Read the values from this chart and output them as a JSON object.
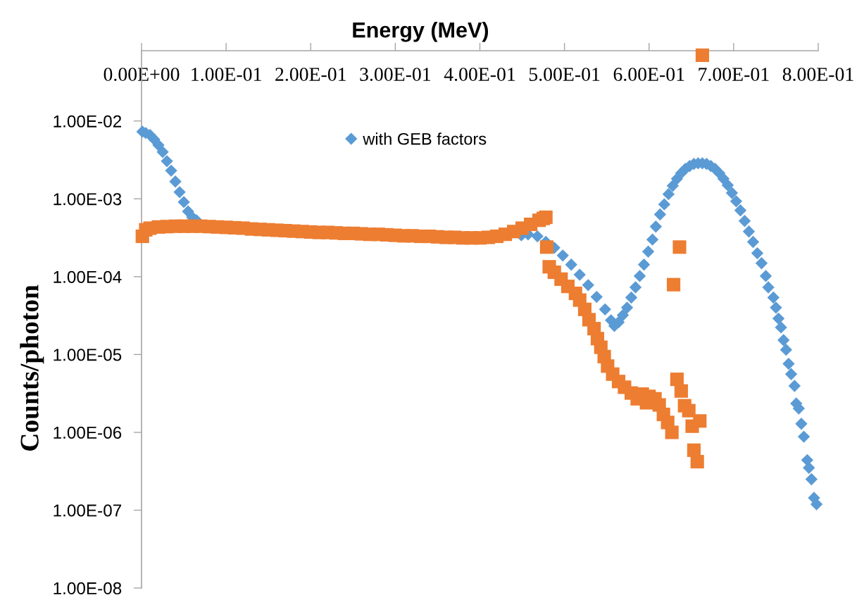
{
  "chart_data": {
    "type": "scatter",
    "xlabel": "Energy (MeV)",
    "ylabel": "Counts/photon",
    "log": "y",
    "xlim": [
      0,
      0.8
    ],
    "ylim": [
      1e-08,
      0.08
    ],
    "xticks": [
      {
        "value": 0,
        "label": "0.00E+00"
      },
      {
        "value": 0.1,
        "label": "1.00E-01"
      },
      {
        "value": 0.2,
        "label": "2.00E-01"
      },
      {
        "value": 0.3,
        "label": "3.00E-01"
      },
      {
        "value": 0.4,
        "label": "4.00E-01"
      },
      {
        "value": 0.5,
        "label": "5.00E-01"
      },
      {
        "value": 0.6,
        "label": "6.00E-01"
      },
      {
        "value": 0.7,
        "label": "7.00E-01"
      },
      {
        "value": 0.8,
        "label": "8.00E-01"
      }
    ],
    "yticks": [
      {
        "value": 1e-08,
        "label": "1.00E-08"
      },
      {
        "value": 1e-07,
        "label": "1.00E-07"
      },
      {
        "value": 1e-06,
        "label": "1.00E-06"
      },
      {
        "value": 1e-05,
        "label": "1.00E-05"
      },
      {
        "value": 0.0001,
        "label": "1.00E-04"
      },
      {
        "value": 0.001,
        "label": "1.00E-03"
      },
      {
        "value": 0.01,
        "label": "1.00E-02"
      }
    ],
    "legend": "top",
    "series": [
      {
        "name": "with GEB factors",
        "color": "#5b9bd5",
        "marker": "diamond",
        "x": [
          0.001,
          0.005,
          0.01,
          0.015,
          0.02,
          0.025,
          0.03,
          0.035,
          0.04,
          0.045,
          0.05,
          0.055,
          0.06,
          0.065,
          0.449,
          0.457,
          0.468,
          0.478,
          0.488,
          0.498,
          0.508,
          0.518,
          0.528,
          0.538,
          0.548,
          0.555,
          0.559,
          0.564,
          0.569,
          0.574,
          0.579,
          0.584,
          0.589,
          0.594,
          0.599,
          0.604,
          0.608,
          0.613,
          0.618,
          0.623,
          0.628,
          0.633,
          0.638,
          0.643,
          0.648,
          0.653,
          0.658,
          0.663,
          0.668,
          0.673,
          0.678,
          0.683,
          0.688,
          0.693,
          0.698,
          0.703,
          0.708,
          0.713,
          0.718,
          0.723,
          0.728,
          0.733,
          0.738,
          0.741,
          0.747,
          0.75,
          0.753,
          0.756,
          0.759,
          0.762,
          0.765,
          0.768,
          0.772,
          0.774,
          0.777,
          0.78,
          0.783,
          0.787,
          0.789,
          0.792,
          0.795,
          0.798
        ],
        "values": [
          0.0073,
          0.007,
          0.0066,
          0.0058,
          0.0049,
          0.004,
          0.00305,
          0.0023,
          0.00167,
          0.00122,
          0.00091,
          0.00069,
          0.00058,
          0.00053,
          0.00034,
          0.00035,
          0.00033,
          0.00028,
          0.000235,
          0.000187,
          0.000143,
          0.000106,
          7.8e-05,
          5.5e-05,
          3.8e-05,
          2.75e-05,
          2.33e-05,
          2.6e-05,
          3.2e-05,
          4e-05,
          5.4e-05,
          7.3e-05,
          0.000102,
          0.000143,
          0.00021,
          0.0003,
          0.00044,
          0.00063,
          0.00085,
          0.00115,
          0.00147,
          0.00181,
          0.00214,
          0.00243,
          0.00264,
          0.00281,
          0.00286,
          0.00286,
          0.00281,
          0.00264,
          0.00243,
          0.00214,
          0.00181,
          0.0015,
          0.00119,
          0.00093,
          0.00071,
          0.00052,
          0.00038,
          0.00028,
          0.0002,
          0.000149,
          0.000102,
          7.3e-05,
          5.4e-05,
          4e-05,
          2.9e-05,
          2.23e-05,
          1.53e-05,
          1.15e-05,
          7.6e-06,
          5.6e-06,
          3.95e-06,
          2.35e-06,
          2.03e-06,
          1.29e-06,
          8.8e-07,
          4.4e-07,
          3.5e-07,
          2.5e-07,
          1.44e-07,
          1.19e-07
        ]
      },
      {
        "color": "#ed7d31",
        "marker": "square",
        "x": [
          0.001,
          0.005,
          0.01,
          0.02,
          0.03,
          0.04,
          0.05,
          0.06,
          0.07,
          0.08,
          0.09,
          0.1,
          0.11,
          0.12,
          0.13,
          0.14,
          0.15,
          0.16,
          0.17,
          0.18,
          0.19,
          0.2,
          0.21,
          0.22,
          0.23,
          0.24,
          0.25,
          0.26,
          0.27,
          0.28,
          0.29,
          0.3,
          0.31,
          0.32,
          0.33,
          0.34,
          0.35,
          0.36,
          0.37,
          0.38,
          0.39,
          0.4,
          0.41,
          0.42,
          0.43,
          0.44,
          0.45,
          0.46,
          0.47,
          0.475,
          0.478,
          0.479,
          0.482,
          0.488,
          0.496,
          0.504,
          0.513,
          0.518,
          0.524,
          0.529,
          0.535,
          0.539,
          0.543,
          0.547,
          0.551,
          0.557,
          0.564,
          0.571,
          0.579,
          0.586,
          0.592,
          0.597,
          0.6,
          0.607,
          0.612,
          0.617,
          0.622,
          0.627,
          0.629,
          0.633,
          0.636,
          0.638,
          0.642,
          0.647,
          0.651,
          0.653,
          0.657,
          0.66,
          0.663
        ],
        "values": [
          0.00033,
          0.0004,
          0.00042,
          0.000435,
          0.00044,
          0.000445,
          0.000445,
          0.000445,
          0.000445,
          0.00044,
          0.000435,
          0.00043,
          0.000425,
          0.00042,
          0.00041,
          0.000405,
          0.0004,
          0.000395,
          0.00039,
          0.000385,
          0.00038,
          0.000375,
          0.00037,
          0.00037,
          0.000365,
          0.00036,
          0.00036,
          0.000355,
          0.00035,
          0.00035,
          0.000345,
          0.00034,
          0.000335,
          0.000335,
          0.00033,
          0.00033,
          0.000325,
          0.00032,
          0.00032,
          0.000315,
          0.000315,
          0.000315,
          0.00032,
          0.00033,
          0.00035,
          0.00038,
          0.00042,
          0.00047,
          0.00053,
          0.00056,
          0.00058,
          0.00024,
          0.000134,
          0.000114,
          9.3e-05,
          7.5e-05,
          6.1e-05,
          5e-05,
          3.8e-05,
          2.8e-05,
          2.15e-05,
          1.6e-05,
          1.24e-05,
          9.4e-06,
          7.1e-06,
          5.6e-06,
          4.5e-06,
          3.8e-06,
          3.2e-06,
          2.7e-06,
          3.1e-06,
          2.4e-06,
          2.9e-06,
          2.7e-06,
          2.25e-06,
          1.7e-06,
          1.34e-06,
          1e-06,
          7.9e-05,
          4.8e-06,
          0.00024,
          3.4e-06,
          2.2e-06,
          1.9e-06,
          1.2e-06,
          5.9e-07,
          4.2e-07,
          1.4e-06,
          0.07
        ]
      }
    ]
  }
}
